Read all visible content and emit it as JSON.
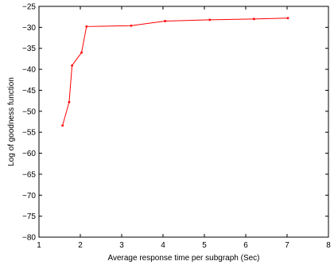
{
  "chart_data": {
    "type": "line",
    "title": "",
    "xlabel": "Average response time per subgraph (Sec)",
    "ylabel": "Log of goodness function",
    "xlim": [
      1,
      8
    ],
    "ylim": [
      -80,
      -25
    ],
    "xticks": [
      1,
      2,
      3,
      4,
      5,
      6,
      7,
      8
    ],
    "yticks": [
      -25,
      -30,
      -35,
      -40,
      -45,
      -50,
      -55,
      -60,
      -65,
      -70,
      -75,
      -80
    ],
    "xtick_labels": [
      "1",
      "2",
      "3",
      "4",
      "5",
      "6",
      "7",
      "8"
    ],
    "ytick_labels": [
      "−25",
      "−30",
      "−35",
      "−40",
      "−45",
      "−50",
      "−55",
      "−60",
      "−65",
      "−70",
      "−75",
      "−80"
    ],
    "grid": false,
    "legend": "none",
    "series": [
      {
        "color": "#ff0000",
        "marker": "dot",
        "x": [
          1.57,
          1.73,
          1.8,
          2.03,
          2.15,
          3.23,
          4.05,
          5.13,
          6.2,
          7.02
        ],
        "y": [
          -53.4,
          -47.8,
          -39.1,
          -36.0,
          -29.8,
          -29.6,
          -28.5,
          -28.2,
          -28.0,
          -27.8
        ]
      }
    ]
  }
}
